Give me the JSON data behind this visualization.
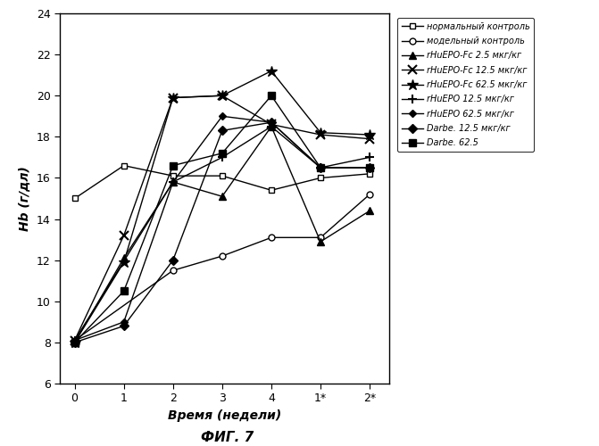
{
  "x_labels": [
    "0",
    "1",
    "2",
    "3",
    "4",
    "1*",
    "2*"
  ],
  "x_positions": [
    0,
    1,
    2,
    3,
    4,
    5,
    6
  ],
  "series": [
    {
      "label": "нормальный контроль",
      "data": [
        15.0,
        16.6,
        16.1,
        16.1,
        15.4,
        16.0,
        16.2
      ],
      "marker": "s",
      "marker_face": "white",
      "linestyle": "-",
      "color": "#000000",
      "markersize": 5,
      "linewidth": 1.0,
      "markeredgewidth": 1.0
    },
    {
      "label": "модельный контроль",
      "data": [
        8.1,
        null,
        11.5,
        12.2,
        13.1,
        13.1,
        15.2
      ],
      "marker": "o",
      "marker_face": "white",
      "linestyle": "-",
      "color": "#000000",
      "markersize": 5,
      "linewidth": 1.0,
      "markeredgewidth": 1.0
    },
    {
      "label": "rHuEPO-Fc 2.5 мкг/кг",
      "data": [
        8.0,
        12.1,
        15.8,
        15.1,
        18.5,
        12.9,
        14.4
      ],
      "marker": "^",
      "marker_face": "#000000",
      "linestyle": "-",
      "color": "#000000",
      "markersize": 6,
      "linewidth": 1.0,
      "markeredgewidth": 1.0
    },
    {
      "label": "rHuEPO-Fc 12.5 мкг/кг",
      "data": [
        8.1,
        13.2,
        19.9,
        20.0,
        18.6,
        18.1,
        17.9
      ],
      "marker": "x",
      "marker_face": "#000000",
      "linestyle": "-",
      "color": "#000000",
      "markersize": 7,
      "linewidth": 1.0,
      "markeredgewidth": 1.5
    },
    {
      "label": "rHuEPO-Fc 62.5 мкг/кг",
      "data": [
        8.0,
        11.9,
        19.9,
        20.0,
        21.2,
        18.2,
        18.1
      ],
      "marker": "*",
      "marker_face": "#000000",
      "linestyle": "-",
      "color": "#000000",
      "markersize": 9,
      "linewidth": 1.0,
      "markeredgewidth": 1.0
    },
    {
      "label": "rHuEPO 12.5 мкг/кг",
      "data": [
        8.1,
        null,
        15.8,
        17.0,
        18.5,
        16.5,
        17.0
      ],
      "marker": "+",
      "marker_face": "#000000",
      "linestyle": "-",
      "color": "#000000",
      "markersize": 7,
      "linewidth": 1.0,
      "markeredgewidth": 1.5
    },
    {
      "label": "rHuEPO 62.5 мкг/кг",
      "data": [
        8.1,
        9.0,
        15.8,
        19.0,
        18.7,
        16.5,
        16.5
      ],
      "marker": "D",
      "marker_face": "#000000",
      "linestyle": "-",
      "color": "#000000",
      "markersize": 4,
      "linewidth": 1.0,
      "markeredgewidth": 1.0
    },
    {
      "label": "Darbe. 12.5 мкг/кг",
      "data": [
        8.0,
        8.8,
        12.0,
        18.3,
        18.7,
        16.5,
        16.5
      ],
      "marker": "D",
      "marker_face": "#000000",
      "linestyle": "-",
      "color": "#000000",
      "markersize": 5,
      "linewidth": 1.0,
      "markeredgewidth": 1.0
    },
    {
      "label": "Darbe. 62.5",
      "data": [
        8.0,
        10.5,
        16.6,
        17.2,
        20.0,
        16.5,
        16.5
      ],
      "marker": "s",
      "marker_face": "#000000",
      "linestyle": "-",
      "color": "#000000",
      "markersize": 6,
      "linewidth": 1.0,
      "markeredgewidth": 1.0
    }
  ],
  "ylabel": "Hb (г/дл)",
  "xlabel": "Время (недели)",
  "title": "ФИГ. 7",
  "ylim": [
    6,
    24
  ],
  "yticks": [
    6,
    8,
    10,
    12,
    14,
    16,
    18,
    20,
    22,
    24
  ],
  "figsize": [
    6.71,
    5.0
  ],
  "dpi": 100,
  "bg_color": "#f0f0f0"
}
